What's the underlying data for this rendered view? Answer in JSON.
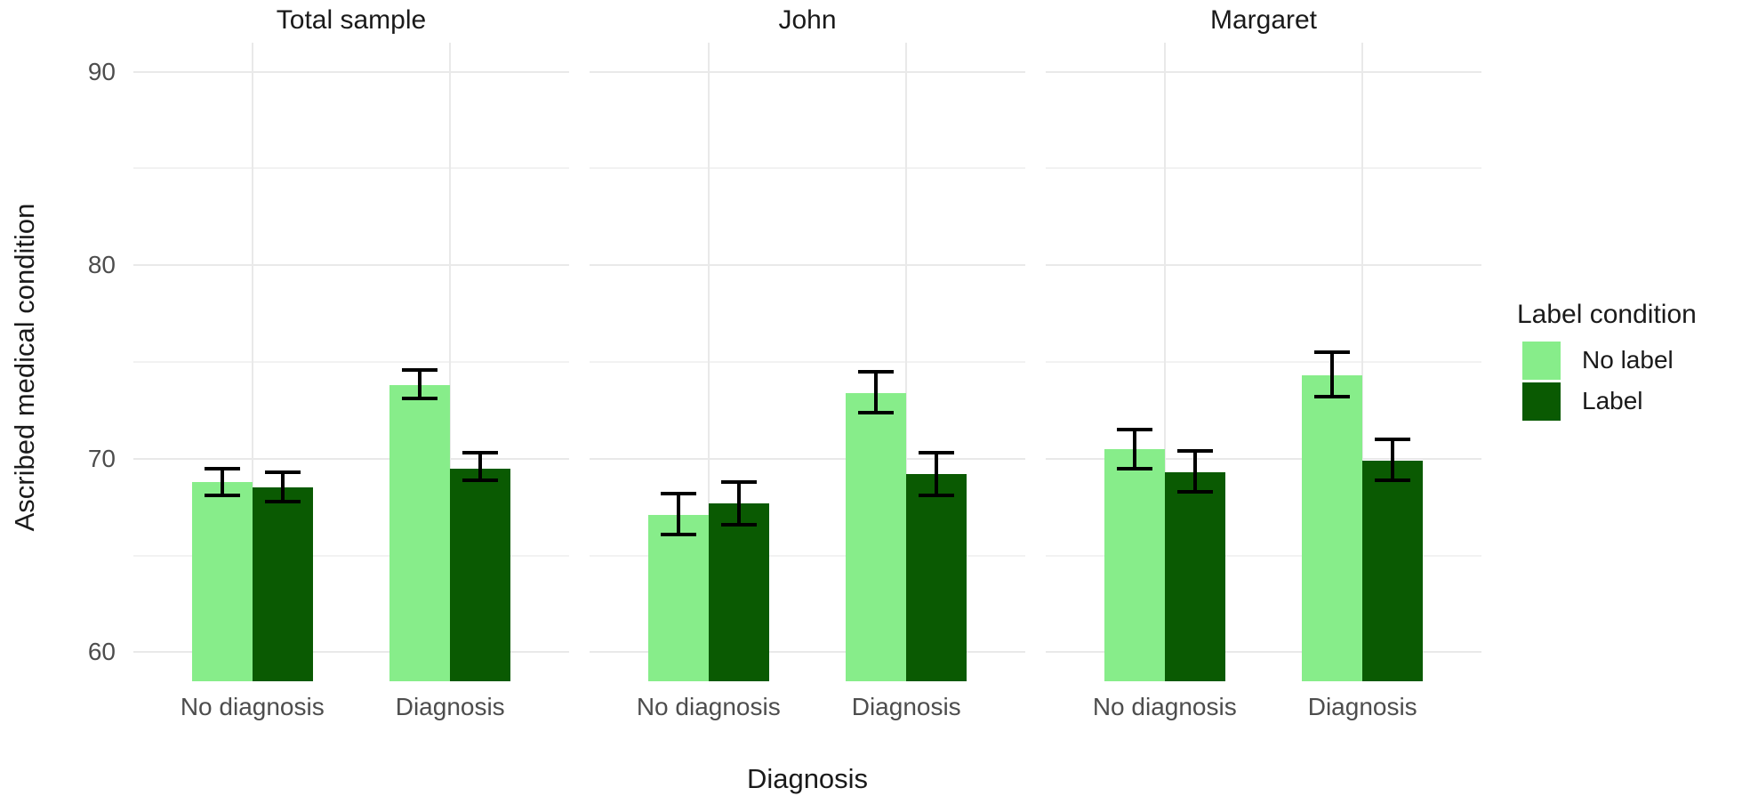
{
  "chart_data": {
    "type": "bar",
    "title": "",
    "xlabel": "Diagnosis",
    "ylabel": "Ascribed medical condition",
    "ylim": [
      58.5,
      91.5
    ],
    "yticks": [
      60,
      70,
      80,
      90
    ],
    "yticks_minor": [
      65,
      75,
      85
    ],
    "grid": "major+minor, light gray on white, no axis lines, no tick marks",
    "categories": [
      "No diagnosis",
      "Diagnosis"
    ],
    "series_names": [
      "No label",
      "Label"
    ],
    "facets": [
      {
        "label": "Total sample",
        "groups": [
          {
            "category": "No diagnosis",
            "bars": [
              {
                "series": "No label",
                "value": 68.8,
                "err_low": 68.1,
                "err_high": 69.5
              },
              {
                "series": "Label",
                "value": 68.5,
                "err_low": 67.8,
                "err_high": 69.3
              }
            ]
          },
          {
            "category": "Diagnosis",
            "bars": [
              {
                "series": "No label",
                "value": 73.8,
                "err_low": 73.1,
                "err_high": 74.6
              },
              {
                "series": "Label",
                "value": 69.5,
                "err_low": 68.9,
                "err_high": 70.3
              }
            ]
          }
        ]
      },
      {
        "label": "John",
        "groups": [
          {
            "category": "No diagnosis",
            "bars": [
              {
                "series": "No label",
                "value": 67.1,
                "err_low": 66.1,
                "err_high": 68.2
              },
              {
                "series": "Label",
                "value": 67.7,
                "err_low": 66.6,
                "err_high": 68.8
              }
            ]
          },
          {
            "category": "Diagnosis",
            "bars": [
              {
                "series": "No label",
                "value": 73.4,
                "err_low": 72.4,
                "err_high": 74.5
              },
              {
                "series": "Label",
                "value": 69.2,
                "err_low": 68.1,
                "err_high": 70.3
              }
            ]
          }
        ]
      },
      {
        "label": "Margaret",
        "groups": [
          {
            "category": "No diagnosis",
            "bars": [
              {
                "series": "No label",
                "value": 70.5,
                "err_low": 69.5,
                "err_high": 71.5
              },
              {
                "series": "Label",
                "value": 69.3,
                "err_low": 68.3,
                "err_high": 70.4
              }
            ]
          },
          {
            "category": "Diagnosis",
            "bars": [
              {
                "series": "No label",
                "value": 74.3,
                "err_low": 73.2,
                "err_high": 75.5
              },
              {
                "series": "Label",
                "value": 69.9,
                "err_low": 68.9,
                "err_high": 71.0
              }
            ]
          }
        ]
      }
    ],
    "colors": {
      "no_label": "#87ED8A",
      "label": "#0A5A02",
      "gridline_major": "#e9e9e9",
      "gridline_minor": "#f2f2f2",
      "tick_text": "#4d4d4d",
      "title_text": "#1a1a1a",
      "error_bar": "#000000",
      "background": "#ffffff"
    },
    "legend": {
      "position": "right",
      "title": "Label condition",
      "entries": [
        {
          "label": "No label",
          "color": "#87ED8A"
        },
        {
          "label": "Label",
          "color": "#0A5A02"
        }
      ]
    }
  }
}
